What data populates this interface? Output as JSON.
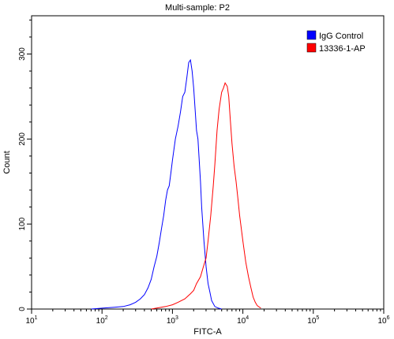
{
  "chart_data": {
    "type": "line",
    "title": "Multi-sample: P2",
    "xlabel": "FITC-A",
    "ylabel": "Count",
    "x_scale": "log",
    "xlim": [
      10,
      1000000
    ],
    "ylim": [
      0,
      345
    ],
    "x_ticks": [
      {
        "base": "10",
        "exp": "1",
        "value": 10
      },
      {
        "base": "10",
        "exp": "2",
        "value": 100
      },
      {
        "base": "10",
        "exp": "3",
        "value": 1000
      },
      {
        "base": "10",
        "exp": "4",
        "value": 10000
      },
      {
        "base": "10",
        "exp": "5",
        "value": 100000
      },
      {
        "base": "10",
        "exp": "6",
        "value": 1000000
      }
    ],
    "y_ticks": [
      "0",
      "100",
      "200",
      "300"
    ],
    "y_tick_values": [
      0,
      100,
      200,
      300
    ],
    "legend_position": "top-right",
    "series": [
      {
        "name": "IgG Control",
        "color": "#0000ff",
        "x": [
          70,
          100,
          150,
          200,
          250,
          300,
          350,
          400,
          450,
          500,
          550,
          600,
          650,
          700,
          750,
          800,
          850,
          900,
          950,
          1000,
          1100,
          1200,
          1300,
          1400,
          1500,
          1600,
          1700,
          1800,
          1900,
          2000,
          2100,
          2200,
          2300,
          2400,
          2500,
          2600,
          2800,
          3000,
          3200,
          3400,
          3600,
          4000,
          4500,
          5000
        ],
        "y": [
          0,
          1,
          2,
          3,
          5,
          8,
          12,
          17,
          25,
          35,
          50,
          62,
          78,
          95,
          110,
          128,
          140,
          145,
          160,
          175,
          200,
          215,
          232,
          250,
          255,
          272,
          290,
          293,
          280,
          260,
          235,
          210,
          200,
          175,
          150,
          120,
          80,
          50,
          30,
          20,
          10,
          3,
          1,
          0
        ]
      },
      {
        "name": "13336-1-AP",
        "color": "#ff0000",
        "x": [
          500,
          800,
          1000,
          1200,
          1500,
          1800,
          2000,
          2200,
          2500,
          2800,
          3000,
          3200,
          3500,
          3800,
          4000,
          4300,
          4600,
          5000,
          5300,
          5600,
          6000,
          6300,
          6600,
          7000,
          7500,
          8000,
          8500,
          9000,
          10000,
          11000,
          12000,
          13000,
          14000,
          15000,
          16000,
          18000
        ],
        "y": [
          0,
          3,
          5,
          8,
          12,
          18,
          22,
          30,
          38,
          52,
          60,
          80,
          110,
          145,
          170,
          210,
          235,
          255,
          260,
          266,
          262,
          250,
          225,
          195,
          168,
          150,
          130,
          110,
          80,
          55,
          38,
          25,
          14,
          8,
          4,
          1
        ]
      }
    ]
  }
}
